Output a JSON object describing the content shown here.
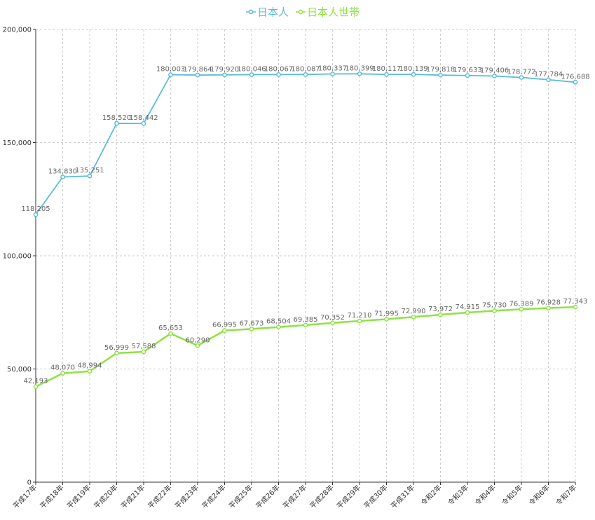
{
  "chart_data": {
    "type": "line",
    "categories": [
      "平成17年",
      "平成18年",
      "平成19年",
      "平成20年",
      "平成21年",
      "平成22年",
      "平成23年",
      "平成24年",
      "平成25年",
      "平成26年",
      "平成27年",
      "平成28年",
      "平成29年",
      "平成30年",
      "平成31年",
      "令和2年",
      "令和3年",
      "令和4年",
      "令和5年",
      "令和6年",
      "令和7年"
    ],
    "series": [
      {
        "name": "日本人",
        "color": "#5bbcd9",
        "values": [
          118205,
          134830,
          135251,
          158520,
          158442,
          180003,
          179864,
          179920,
          180046,
          180067,
          180087,
          180337,
          180399,
          180117,
          180139,
          179818,
          179633,
          179406,
          178772,
          177784,
          176688
        ],
        "labels": [
          "118,205",
          "134,830",
          "135,251",
          "158,520",
          "158,442",
          "180,003",
          "179,864",
          "179,920",
          "180,046",
          "180,067",
          "180,087",
          "180,337",
          "180,399",
          "180,117",
          "180,139",
          "179,818",
          "179,633",
          "179,406",
          "178,772",
          "177,784",
          "176,688"
        ]
      },
      {
        "name": "日本人世帯",
        "color": "#8ee343",
        "values": [
          42193,
          48070,
          48994,
          56999,
          57588,
          65653,
          60290,
          66995,
          67673,
          68504,
          69385,
          70352,
          71210,
          71995,
          72990,
          73972,
          74915,
          75730,
          76389,
          76928,
          77343
        ],
        "labels": [
          "42,193",
          "48,070",
          "48,994",
          "56,999",
          "57,588",
          "65,653",
          "60,290",
          "66,995",
          "67,673",
          "68,504",
          "69,385",
          "70,352",
          "71,210",
          "71,995",
          "72,990",
          "73,972",
          "74,915",
          "75,730",
          "76,389",
          "76,928",
          "77,343"
        ]
      }
    ],
    "y_ticks": [
      0,
      50000,
      100000,
      150000,
      200000
    ],
    "y_tick_labels": [
      "0",
      "50,000",
      "100,000",
      "150,000",
      "200,000"
    ],
    "ylim": [
      0,
      200000
    ],
    "grid": true,
    "legend_position": "top-center",
    "title": "",
    "xlabel": "",
    "ylabel": ""
  }
}
